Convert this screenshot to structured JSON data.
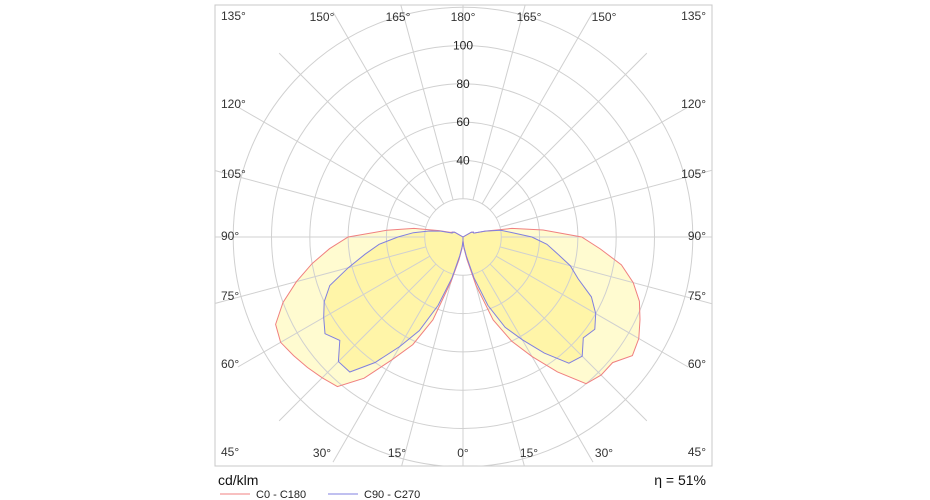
{
  "chart_data": {
    "type": "polar",
    "unit_label": "cd/klm",
    "efficiency_label": "η = 51%",
    "radial_max": 120,
    "radial_ticks": [
      20,
      40,
      60,
      80,
      100
    ],
    "radial_tick_labels": [
      "40",
      "60",
      "80",
      "100"
    ],
    "angle_labels_left": [
      "135°",
      "120°",
      "105°",
      "90°",
      "75°",
      "60°",
      "45°"
    ],
    "angle_labels_right": [
      "135°",
      "120°",
      "105°",
      "90°",
      "75°",
      "60°",
      "45°"
    ],
    "angle_labels_top": [
      "150°",
      "165°",
      "180°",
      "165°",
      "150°"
    ],
    "angle_labels_bottom": [
      "30°",
      "15°",
      "0°",
      "15°",
      "30°"
    ],
    "grid": true,
    "legend_position": "bottom-left",
    "colors": {
      "c0": "#f08080",
      "c90": "#8080e0",
      "outer_fill": "#fffbd0",
      "inner_fill": "#fff5a8",
      "grid": "#d0d0d0"
    },
    "series": [
      {
        "name": "C0 - C180",
        "angles": [
          0,
          5,
          10,
          15,
          20,
          25,
          30,
          35,
          40,
          45,
          50,
          55,
          60,
          65,
          70,
          75,
          80,
          85,
          90,
          95,
          100,
          105,
          110,
          115,
          120
        ],
        "right": [
          2,
          6,
          12,
          26,
          46,
          60,
          72,
          86,
          100,
          102,
          102,
          108,
          106,
          102,
          98,
          92,
          84,
          72,
          62,
          42,
          26,
          12,
          6,
          6,
          5
        ],
        "left": [
          2,
          6,
          12,
          24,
          46,
          62,
          74,
          90,
          102,
          104,
          106,
          108,
          110,
          108,
          100,
          90,
          80,
          70,
          60,
          40,
          26,
          13,
          7,
          6,
          5
        ]
      },
      {
        "name": "C90 - C270",
        "angles": [
          0,
          5,
          10,
          15,
          20,
          25,
          30,
          35,
          40,
          45,
          50,
          55,
          60,
          65,
          70,
          75,
          80,
          85,
          90,
          95,
          100,
          105,
          110,
          115,
          120
        ],
        "right": [
          2,
          5,
          10,
          22,
          38,
          52,
          62,
          74,
          86,
          88,
          82,
          84,
          80,
          74,
          64,
          58,
          50,
          44,
          36,
          26,
          20,
          12,
          6,
          6,
          5
        ],
        "left": [
          2,
          5,
          10,
          22,
          38,
          54,
          66,
          80,
          92,
          92,
          84,
          88,
          84,
          80,
          74,
          62,
          52,
          44,
          34,
          26,
          18,
          12,
          6,
          6,
          5
        ]
      }
    ]
  }
}
